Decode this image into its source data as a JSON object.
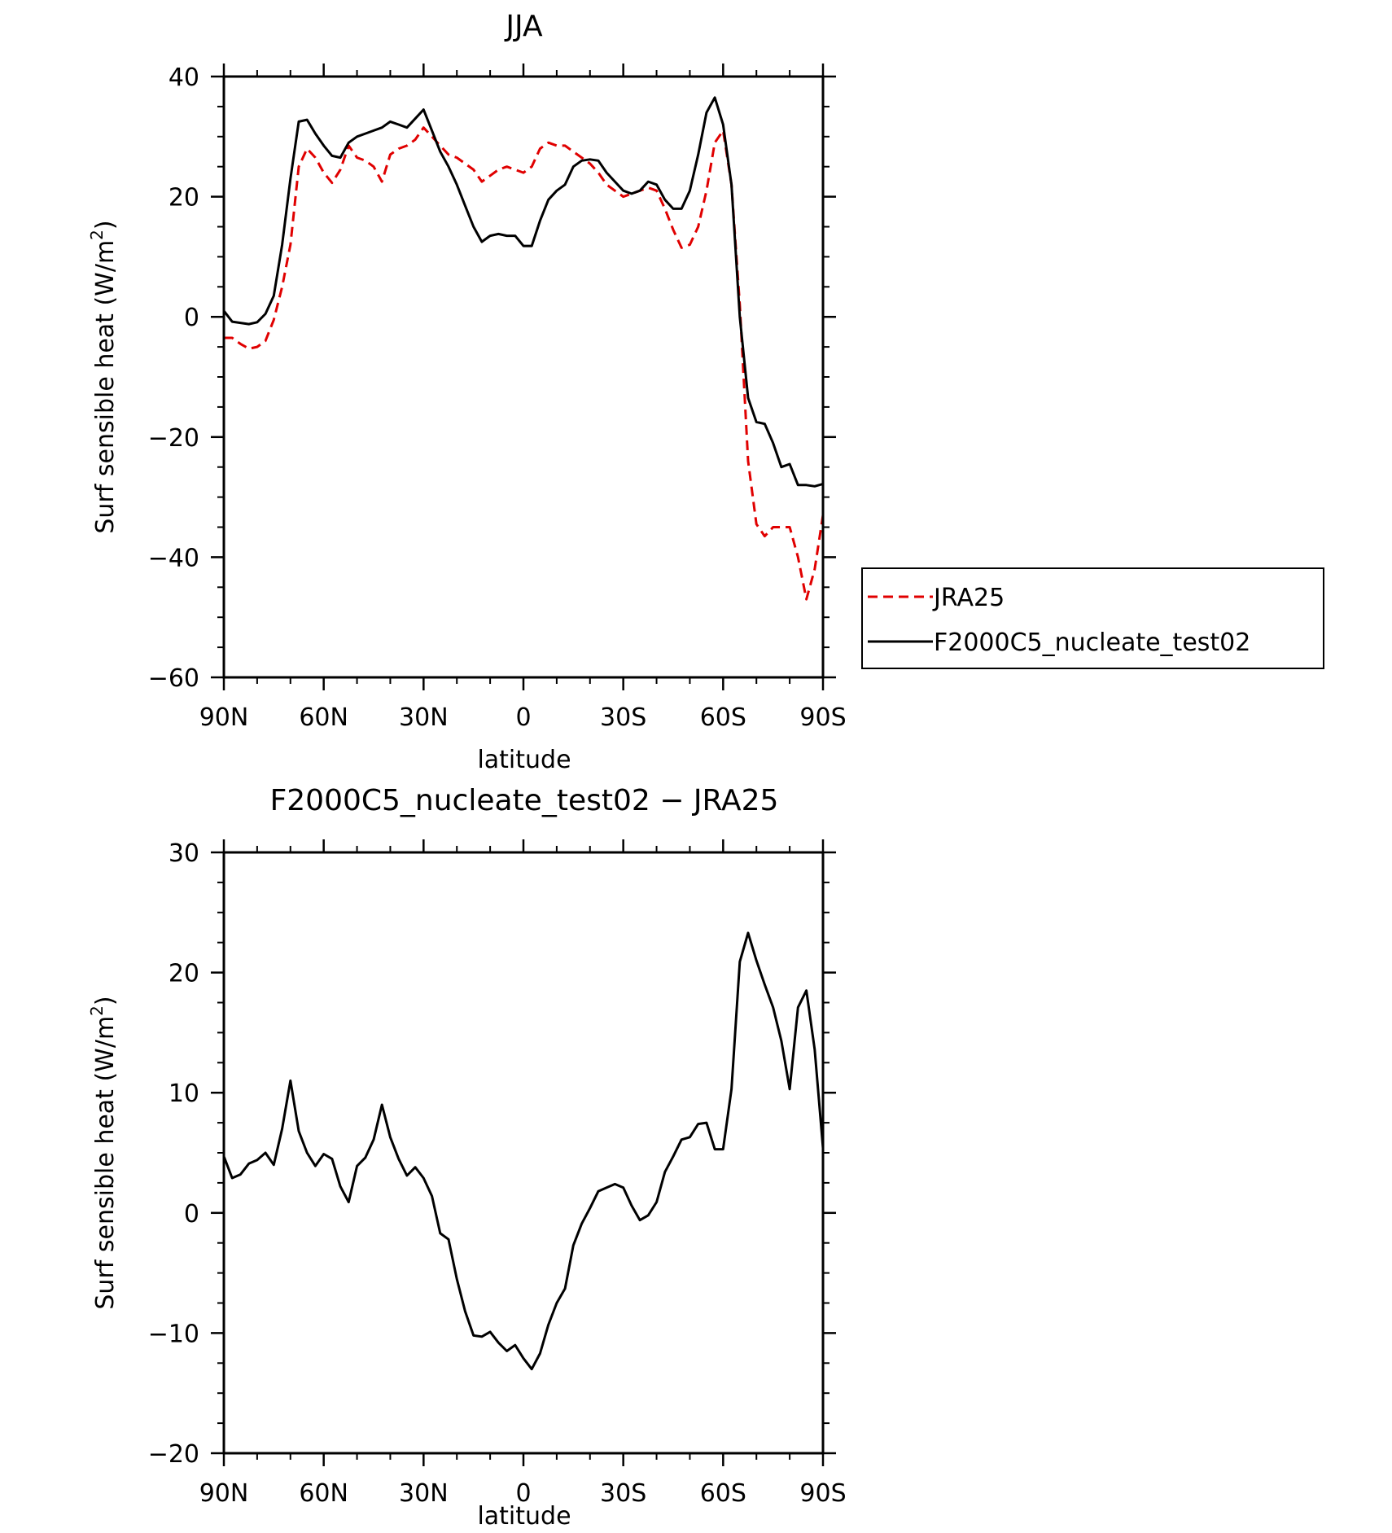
{
  "chart_data": [
    {
      "type": "line",
      "title": "JJA",
      "xlabel": "latitude",
      "ylabel": "Surf sensible heat (W/m",
      "ylabel_sup": "2",
      "ylabel_close": ")",
      "xlim": [
        90,
        -90
      ],
      "ylim": [
        -60,
        40
      ],
      "yticks": [
        40,
        20,
        0,
        -20,
        -40,
        -60
      ],
      "ytick_labels": [
        "40",
        "20",
        "0",
        "−20",
        "−40",
        "−60"
      ],
      "xticks": [
        90,
        60,
        30,
        0,
        -30,
        -60,
        -90
      ],
      "xtick_labels": [
        "90N",
        "60N",
        "30N",
        "0",
        "30S",
        "60S",
        "90S"
      ],
      "legend": {
        "placement": "right",
        "entries": [
          {
            "label": "JRA25",
            "color": "#e00000",
            "dash": "dashed"
          },
          {
            "label": "F2000C5_nucleate_test02",
            "color": "#000000",
            "dash": "solid"
          }
        ]
      },
      "series": [
        {
          "name": "JRA25",
          "color": "#e00000",
          "dash": "dashed",
          "x": [
            90,
            87.5,
            85,
            82.5,
            80,
            77.5,
            75,
            72.5,
            70,
            67.5,
            65,
            62.5,
            60,
            57.5,
            55,
            52.5,
            50,
            47.5,
            45,
            42.5,
            40,
            37.5,
            35,
            32.5,
            30,
            27.5,
            25,
            22.5,
            20,
            17.5,
            15,
            12.5,
            10,
            7.5,
            5,
            2.5,
            0,
            -2.5,
            -5,
            -7.5,
            -10,
            -12.5,
            -15,
            -17.5,
            -20,
            -22.5,
            -25,
            -27.5,
            -30,
            -32.5,
            -35,
            -37.5,
            -40,
            -42.5,
            -45,
            -47.5,
            -50,
            -52.5,
            -55,
            -57.5,
            -60,
            -62.5,
            -65,
            -67.5,
            -70,
            -72.5,
            -75,
            -77.5,
            -80,
            -82.5,
            -85,
            -87.5,
            -90
          ],
          "y": [
            -3.5,
            -3.5,
            -4.5,
            -5.3,
            -5.0,
            -4.0,
            -0.5,
            5.0,
            12.0,
            25.0,
            28.0,
            26.5,
            24.0,
            22.3,
            24.5,
            28.5,
            26.5,
            26.0,
            25.0,
            22.5,
            27.0,
            28.0,
            28.5,
            29.5,
            31.5,
            30.0,
            28.5,
            27.0,
            26.5,
            25.5,
            24.5,
            22.5,
            23.5,
            24.5,
            25.0,
            24.5,
            24.0,
            25.0,
            28.0,
            29.0,
            28.5,
            28.5,
            27.5,
            26.5,
            25.5,
            24.0,
            22.0,
            21.0,
            20.0,
            20.5,
            21.0,
            21.5,
            21.0,
            18.0,
            14.5,
            11.5,
            12.0,
            15.0,
            21.0,
            29.0,
            31.0,
            22.0,
            2.0,
            -24.0,
            -34.5,
            -36.5,
            -35.0,
            -35.0,
            -35.0,
            -40.0,
            -47.0,
            -42.0,
            -33.0
          ]
        },
        {
          "name": "F2000C5_nucleate_test02",
          "color": "#000000",
          "dash": "solid",
          "x": [
            90,
            87.5,
            85,
            82.5,
            80,
            77.5,
            75,
            72.5,
            70,
            67.5,
            65,
            62.5,
            60,
            57.5,
            55,
            52.5,
            50,
            47.5,
            45,
            42.5,
            40,
            37.5,
            35,
            32.5,
            30,
            27.5,
            25,
            22.5,
            20,
            17.5,
            15,
            12.5,
            10,
            7.5,
            5,
            2.5,
            0,
            -2.5,
            -5,
            -7.5,
            -10,
            -12.5,
            -15,
            -17.5,
            -20,
            -22.5,
            -25,
            -27.5,
            -30,
            -32.5,
            -35,
            -37.5,
            -40,
            -42.5,
            -45,
            -47.5,
            -50,
            -52.5,
            -55,
            -57.5,
            -60,
            -62.5,
            -65,
            -67.5,
            -70,
            -72.5,
            -75,
            -77.5,
            -80,
            -82.5,
            -85,
            -87.5,
            -90
          ],
          "y": [
            1.0,
            -0.8,
            -1.0,
            -1.2,
            -0.9,
            0.5,
            3.5,
            12.0,
            23.0,
            32.5,
            32.8,
            30.5,
            28.5,
            26.8,
            26.5,
            29.0,
            30.0,
            30.5,
            31.0,
            31.5,
            32.5,
            32.0,
            31.5,
            33.0,
            34.5,
            31.0,
            27.5,
            25.0,
            22.0,
            18.5,
            15.0,
            12.5,
            13.5,
            13.8,
            13.5,
            13.5,
            11.8,
            11.8,
            16.0,
            19.5,
            21.0,
            22.0,
            25.0,
            26.0,
            26.2,
            26.0,
            24.0,
            22.5,
            21.0,
            20.5,
            21.0,
            22.5,
            22.0,
            19.5,
            18.0,
            18.0,
            21.0,
            27.0,
            34.0,
            36.5,
            32.0,
            22.0,
            0.0,
            -13.5,
            -17.5,
            -17.8,
            -21.0,
            -25.0,
            -24.5,
            -28.0,
            -28.0,
            -28.2,
            -27.8
          ]
        }
      ]
    },
    {
      "type": "line",
      "title": "F2000C5_nucleate_test02 − JRA25",
      "xlabel": "latitude",
      "ylabel": "Surf sensible heat (W/m",
      "ylabel_sup": "2",
      "ylabel_close": ")",
      "xlim": [
        90,
        -90
      ],
      "ylim": [
        -20,
        30
      ],
      "yticks": [
        30,
        20,
        10,
        0,
        -10,
        -20
      ],
      "ytick_labels": [
        "30",
        "20",
        "10",
        "0",
        "−10",
        "−20"
      ],
      "xticks": [
        90,
        60,
        30,
        0,
        -30,
        -60,
        -90
      ],
      "xtick_labels": [
        "90N",
        "60N",
        "30N",
        "0",
        "30S",
        "60S",
        "90S"
      ],
      "series": [
        {
          "color": "#000000",
          "dash": "solid",
          "x": [
            90,
            87.5,
            85,
            82.5,
            80,
            77.5,
            75,
            72.5,
            70,
            67.5,
            65,
            62.5,
            60,
            57.5,
            55,
            52.5,
            50,
            47.5,
            45,
            42.5,
            40,
            37.5,
            35,
            32.5,
            30,
            27.5,
            25,
            22.5,
            20,
            17.5,
            15,
            12.5,
            10,
            7.5,
            5,
            2.5,
            0,
            -2.5,
            -5,
            -7.5,
            -10,
            -12.5,
            -15,
            -17.5,
            -20,
            -22.5,
            -25,
            -27.5,
            -30,
            -32.5,
            -35,
            -37.5,
            -40,
            -42.5,
            -45,
            -47.5,
            -50,
            -52.5,
            -55,
            -57.5,
            -60,
            -62.5,
            -65,
            -67.5,
            -70,
            -72.5,
            -75,
            -77.5,
            -80,
            -82.5,
            -85,
            -87.5,
            -90
          ],
          "y": [
            4.7,
            2.9,
            3.2,
            4.1,
            4.4,
            5.0,
            4.0,
            7.0,
            11.0,
            6.8,
            5.0,
            3.9,
            4.9,
            4.5,
            2.2,
            0.9,
            3.9,
            4.6,
            6.1,
            9.0,
            6.3,
            4.5,
            3.1,
            3.8,
            2.9,
            1.4,
            -1.7,
            -2.2,
            -5.5,
            -8.2,
            -10.2,
            -10.3,
            -9.9,
            -10.8,
            -11.5,
            -11.0,
            -12.1,
            -13.0,
            -11.7,
            -9.3,
            -7.5,
            -6.3,
            -2.7,
            -0.9,
            0.4,
            1.8,
            2.1,
            2.4,
            2.1,
            0.6,
            -0.6,
            -0.2,
            0.9,
            3.4,
            4.7,
            6.1,
            6.3,
            7.4,
            7.5,
            5.3,
            5.3,
            10.3,
            20.9,
            23.3,
            21.0,
            19.0,
            17.1,
            14.3,
            10.3,
            17.1,
            18.5,
            13.6,
            5.4
          ]
        }
      ]
    }
  ]
}
